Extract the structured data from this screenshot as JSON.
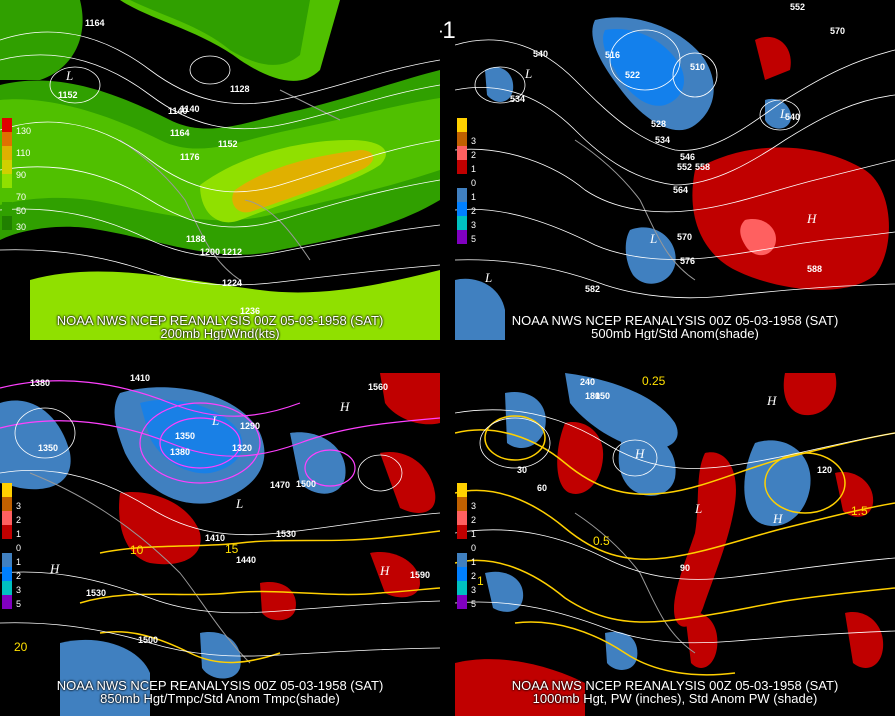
{
  "title": "00Z 05-03-1958 (SAT)",
  "panels": [
    {
      "caption_line1": "NOAA NWS NCEP REANALYSIS 00Z 05-03-1958 (SAT)",
      "caption_line2": "200mb Hgt/Wnd(kts)",
      "colorbar_labels": [
        "130",
        "110",
        "90",
        "70",
        "50",
        "30"
      ],
      "colorbar_colors": [
        "#e00000",
        "#e07000",
        "#e0b000",
        "#d0d000",
        "#90e000",
        "#50c000",
        "#30a000",
        "#208000"
      ],
      "contour_labels": [
        "1164",
        "1152",
        "1140",
        "1128",
        "1176",
        "1164",
        "1152",
        "1140",
        "1188",
        "1200",
        "1212",
        "1224",
        "1236"
      ]
    },
    {
      "caption_line1": "NOAA NWS NCEP REANALYSIS 00Z 05-03-1958 (SAT)",
      "caption_line2": "500mb Hgt/Std Anom(shade)",
      "colorbar_labels": [
        "3",
        "2",
        "1",
        "0",
        "1",
        "2",
        "3",
        "5"
      ],
      "contour_labels": [
        "540",
        "534",
        "516",
        "522",
        "528",
        "534",
        "510",
        "540",
        "546",
        "552",
        "558",
        "564",
        "570",
        "576",
        "582",
        "588",
        "570",
        "552"
      ]
    },
    {
      "caption_line1": "NOAA NWS NCEP REANALYSIS 00Z 05-03-1958 (SAT)",
      "caption_line2": "850mb Hgt/Tmpc/Std Anom Tmpc(shade)",
      "colorbar_labels": [
        "3",
        "2",
        "1",
        "0",
        "1",
        "2",
        "3",
        "5"
      ],
      "contour_labels": [
        "1380",
        "1410",
        "1350",
        "1380",
        "1320",
        "1290",
        "1350",
        "1410",
        "1440",
        "1470",
        "1500",
        "1530",
        "1560",
        "1590",
        "1530",
        "1500",
        "10",
        "15",
        "20"
      ]
    },
    {
      "caption_line1": "NOAA NWS NCEP REANALYSIS 00Z 05-03-1958 (SAT)",
      "caption_line2": "1000mb Hgt, PW (inches), Std Anom PW (shade)",
      "colorbar_labels": [
        "3",
        "2",
        "1",
        "0",
        "1",
        "2",
        "3",
        "5"
      ],
      "contour_labels": [
        "240",
        "180",
        "150",
        "120",
        "90",
        "60",
        "30",
        "0.25",
        "0.5",
        "1",
        "1.5"
      ]
    }
  ],
  "anom_colors": [
    "#ffd000",
    "#c06000",
    "#ff6060",
    "#c00000",
    "#000000",
    "#4080c0",
    "#0080ff",
    "#00c0c0",
    "#8000c0"
  ]
}
